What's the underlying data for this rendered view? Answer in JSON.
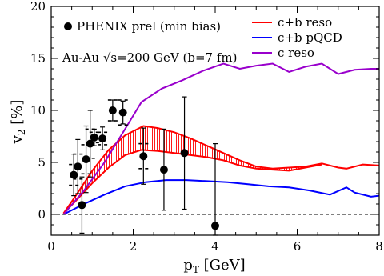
{
  "chart_data": {
    "type": "line",
    "xlabel": "p",
    "xlabel_sub": "T",
    "xlabel_unit": " [GeV]",
    "ylabel": "v",
    "ylabel_sub": "2",
    "ylabel_unit": " [%]",
    "xlim": [
      0,
      8
    ],
    "ylim": [
      -2,
      20
    ],
    "x_ticks": [
      0,
      2,
      4,
      6,
      8
    ],
    "y_ticks": [
      0,
      5,
      10,
      15,
      20
    ],
    "x_minor_step": 0.5,
    "y_minor_step": 1,
    "reference_line": {
      "y": 0,
      "style": "dashed"
    },
    "legend_placement": "top-right",
    "legend": [
      {
        "label": "c+b reso",
        "color": "#ff0000"
      },
      {
        "label": "c+b pQCD",
        "color": "#0000ff"
      },
      {
        "label": "c reso",
        "color": "#9900cc"
      }
    ],
    "annotations": [
      {
        "text": "PHENIX prel (min bias)",
        "marker": "filled-circle"
      },
      {
        "text": "Au-Au √s=200 GeV (b=7 fm)"
      }
    ],
    "series": [
      {
        "name": "c+b reso",
        "color": "#ff0000",
        "band_fill": "hatched",
        "upper": {
          "x": [
            0.3,
            0.6,
            1.0,
            1.4,
            1.8,
            2.25,
            2.6,
            3.0,
            3.4,
            3.8,
            4.2,
            4.6,
            5.0,
            5.4,
            5.8,
            6.2,
            6.6
          ],
          "y": [
            0.1,
            1.8,
            4.2,
            6.2,
            7.6,
            8.5,
            8.3,
            7.9,
            7.3,
            6.6,
            5.9,
            5.2,
            4.6,
            4.4,
            4.5,
            4.6,
            4.9
          ]
        },
        "lower": {
          "x": [
            0.3,
            0.6,
            1.0,
            1.4,
            1.8,
            2.2,
            2.6,
            3.0,
            3.4,
            3.8,
            4.2,
            4.6,
            5.0,
            5.4,
            5.8,
            6.2,
            6.6
          ],
          "y": [
            0.1,
            1.3,
            3.0,
            4.5,
            5.7,
            6.2,
            6.1,
            5.9,
            5.7,
            5.5,
            5.2,
            4.7,
            4.4,
            4.3,
            4.2,
            4.5,
            4.8
          ]
        },
        "tail": {
          "x": [
            6.6,
            7.0,
            7.2,
            7.6,
            8.0
          ],
          "y": [
            4.9,
            4.5,
            4.4,
            4.8,
            4.7
          ]
        }
      },
      {
        "name": "c+b pQCD",
        "color": "#0000ff",
        "x": [
          0.3,
          0.8,
          1.3,
          1.8,
          2.3,
          2.8,
          3.3,
          3.8,
          4.3,
          4.8,
          5.3,
          5.8,
          6.3,
          6.8,
          7.2,
          7.4,
          7.8,
          8.0
        ],
        "y": [
          0.0,
          1.0,
          1.9,
          2.7,
          3.1,
          3.3,
          3.3,
          3.2,
          3.1,
          2.9,
          2.7,
          2.6,
          2.3,
          1.9,
          2.6,
          2.1,
          1.7,
          1.8
        ]
      },
      {
        "name": "c reso",
        "color": "#9900cc",
        "x": [
          0.3,
          0.8,
          1.3,
          1.8,
          2.2,
          2.7,
          3.2,
          3.7,
          4.2,
          4.6,
          5.0,
          5.4,
          5.8,
          6.2,
          6.6,
          7.0,
          7.4,
          7.8,
          8.0
        ],
        "y": [
          0.0,
          2.3,
          5.0,
          8.2,
          10.8,
          12.1,
          12.9,
          13.8,
          14.5,
          14.0,
          14.3,
          14.5,
          13.7,
          14.2,
          14.5,
          13.5,
          13.9,
          14.0,
          14.0
        ]
      }
    ],
    "data_points": {
      "name": "PHENIX prel (min bias)",
      "points": [
        {
          "x": 0.55,
          "y": 3.8,
          "err_lo": 2.0,
          "err_hi": 2.0,
          "sys": 1.0
        },
        {
          "x": 0.65,
          "y": 4.6,
          "err_lo": 2.6,
          "err_hi": 2.6,
          "sys": 1.2
        },
        {
          "x": 0.75,
          "y": 0.9,
          "err_lo": 2.7,
          "err_hi": 2.7,
          "sys": 0.0
        },
        {
          "x": 0.85,
          "y": 5.3,
          "err_lo": 3.2,
          "err_hi": 3.2,
          "sys": 1.4
        },
        {
          "x": 0.95,
          "y": 6.8,
          "err_lo": 3.2,
          "err_hi": 3.2,
          "sys": 1.4
        },
        {
          "x": 1.05,
          "y": 7.4,
          "err_lo": 0.8,
          "err_hi": 0.8,
          "sys": 0.5
        },
        {
          "x": 1.25,
          "y": 7.3,
          "err_lo": 1.1,
          "err_hi": 1.1,
          "sys": 0.6
        },
        {
          "x": 1.5,
          "y": 10.0,
          "err_lo": 1.0,
          "err_hi": 1.0,
          "sys": 1.0
        },
        {
          "x": 1.75,
          "y": 9.8,
          "err_lo": 1.1,
          "err_hi": 1.1,
          "sys": 1.2
        },
        {
          "x": 2.25,
          "y": 5.6,
          "err_lo": 2.7,
          "err_hi": 2.7,
          "sys": 1.2
        },
        {
          "x": 2.75,
          "y": 4.3,
          "err_lo": 3.9,
          "err_hi": 3.9,
          "sys": 0.0
        },
        {
          "x": 3.25,
          "y": 5.9,
          "err_lo": 5.4,
          "err_hi": 5.4,
          "sys": 0.0
        },
        {
          "x": 4.0,
          "y": -1.1,
          "err_lo": 0.9,
          "err_hi": 7.9,
          "sys": 0.0
        }
      ]
    }
  }
}
